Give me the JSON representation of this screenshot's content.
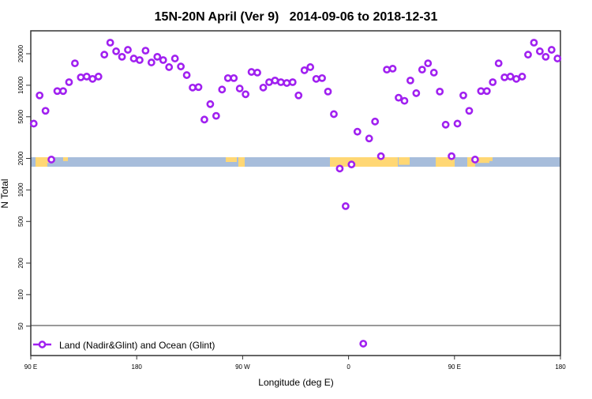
{
  "chart_data": {
    "type": "scatter",
    "title": "15N-20N April (Ver 9)   2014-09-06 to 2018-12-31",
    "xlabel": "Longitude (deg E)",
    "ylabel": "N Total",
    "yscale": "log",
    "ylim": [
      33,
      32500
    ],
    "xlim_unwrapped_deg": [
      90,
      540
    ],
    "x_ticks": [
      {
        "value": 90,
        "label": "90 E"
      },
      {
        "value": 180,
        "label": "180"
      },
      {
        "value": 270,
        "label": "90 W"
      },
      {
        "value": 360,
        "label": "0"
      },
      {
        "value": 450,
        "label": "90 E"
      },
      {
        "value": 540,
        "label": "180"
      }
    ],
    "y_ticks": [
      {
        "value": 50,
        "label": "50"
      },
      {
        "value": 100,
        "label": "100"
      },
      {
        "value": 200,
        "label": "200"
      },
      {
        "value": 500,
        "label": "500"
      },
      {
        "value": 1000,
        "label": "1000"
      },
      {
        "value": 2000,
        "label": "2000"
      },
      {
        "value": 5000,
        "label": "5000"
      },
      {
        "value": 10000,
        "label": "10000"
      },
      {
        "value": 20000,
        "label": "20000"
      }
    ],
    "legend": {
      "placement": "bottom-left",
      "entries": [
        "Land (Nadir&Glint) and Ocean (Glint)"
      ]
    },
    "series": [
      {
        "name": "Land (Nadir&Glint) and Ocean (Glint)",
        "color": "#a020f0",
        "lon_start_deg": 92.5,
        "lon_step_deg": 5,
        "values": [
          4300,
          8000,
          5700,
          1950,
          8800,
          8800,
          10700,
          16200,
          11900,
          12100,
          11500,
          12100,
          19600,
          25500,
          21100,
          18700,
          21800,
          18000,
          17400,
          21400,
          16500,
          18700,
          17400,
          14900,
          18000,
          15100,
          12500,
          9500,
          9600,
          4700,
          6600,
          5100,
          9100,
          11700,
          11700,
          9300,
          8200,
          13400,
          13200,
          9500,
          10700,
          11100,
          10700,
          10500,
          10700,
          8000,
          13900,
          14900,
          11500,
          11700,
          8700,
          5300,
          1600,
          700,
          1750,
          3600,
          34,
          3100,
          4500,
          2100,
          14100,
          14400,
          7600,
          7100,
          11100,
          8400,
          14100,
          16200,
          13200,
          8700,
          4200,
          2100,
          4300,
          8000,
          5700,
          1950,
          8800,
          8800,
          10700,
          16200,
          11900,
          12100,
          11500,
          12100,
          19600,
          25500,
          21100,
          18700,
          21800,
          18000
        ]
      }
    ],
    "map_strip": {
      "ocean_color": "#a7bddb",
      "land_color": "#ffd774"
    }
  }
}
